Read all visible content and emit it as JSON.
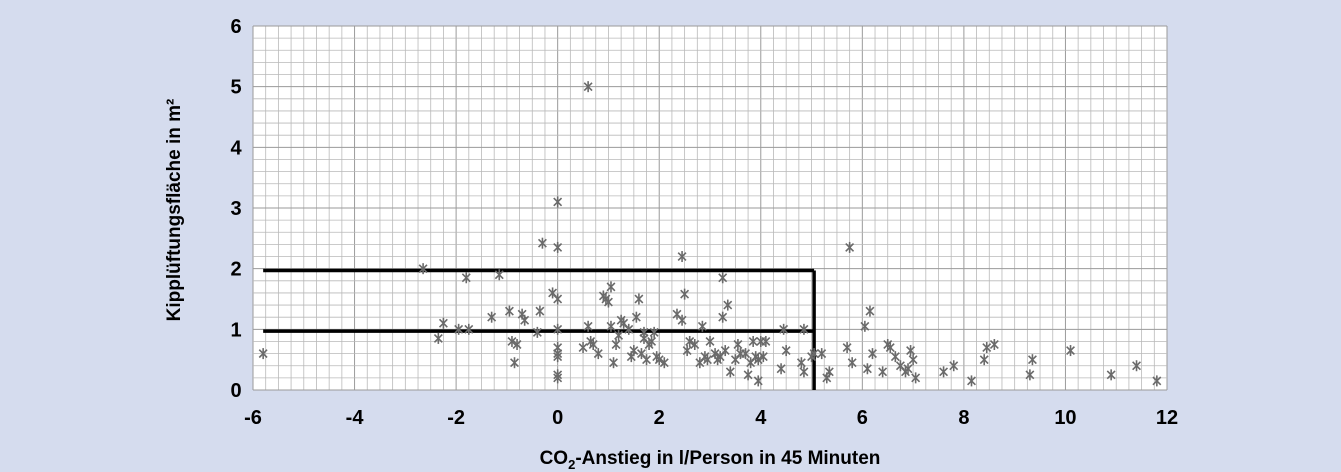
{
  "chart_data": {
    "type": "scatter",
    "xlabel": "CO",
    "xlabel_subscript": "2",
    "xlabel_rest": "-Anstieg in l/Person in 45 Minuten",
    "ylabel": "Kipplüftungsfläche in m²",
    "xlim": [
      -6,
      12
    ],
    "ylim": [
      0,
      6
    ],
    "x_ticks": [
      "-6",
      "-4",
      "-2",
      "0",
      "2",
      "4",
      "6",
      "8",
      "10",
      "12"
    ],
    "y_ticks": [
      "0",
      "1",
      "2",
      "3",
      "4",
      "5",
      "6"
    ],
    "grid": true,
    "marker": "asterisk",
    "marker_color": "#6a6a6a",
    "background_color": "#d5dcee",
    "plot_background_color": "#ffffff",
    "highlight_region": {
      "x_from": -5.8,
      "x_to": 5.05,
      "y_lines": [
        1.97,
        0.97
      ],
      "line_color": "#000000"
    },
    "points": [
      [
        -5.8,
        0.6
      ],
      [
        -2.65,
        2.0
      ],
      [
        -2.35,
        0.85
      ],
      [
        -2.25,
        1.1
      ],
      [
        -1.95,
        1.0
      ],
      [
        -1.8,
        1.85
      ],
      [
        -1.75,
        1.0
      ],
      [
        -1.3,
        1.2
      ],
      [
        -1.15,
        1.9
      ],
      [
        -0.95,
        1.3
      ],
      [
        -0.9,
        0.8
      ],
      [
        -0.85,
        0.45
      ],
      [
        -0.8,
        0.75
      ],
      [
        -0.7,
        1.25
      ],
      [
        -0.65,
        1.15
      ],
      [
        -0.4,
        0.95
      ],
      [
        -0.35,
        1.3
      ],
      [
        -0.3,
        2.42
      ],
      [
        -0.1,
        1.6
      ],
      [
        0.0,
        3.1
      ],
      [
        0.0,
        2.35
      ],
      [
        0.0,
        1.5
      ],
      [
        0.0,
        1.0
      ],
      [
        0.0,
        0.7
      ],
      [
        0.0,
        0.6
      ],
      [
        0.0,
        0.55
      ],
      [
        0.0,
        0.25
      ],
      [
        0.0,
        0.2
      ],
      [
        0.5,
        0.7
      ],
      [
        0.6,
        5.0
      ],
      [
        0.6,
        1.05
      ],
      [
        0.65,
        0.8
      ],
      [
        0.7,
        0.75
      ],
      [
        0.8,
        0.6
      ],
      [
        0.9,
        1.55
      ],
      [
        0.95,
        1.5
      ],
      [
        1.0,
        1.45
      ],
      [
        1.05,
        1.7
      ],
      [
        1.05,
        1.05
      ],
      [
        1.1,
        0.45
      ],
      [
        1.15,
        0.75
      ],
      [
        1.2,
        0.9
      ],
      [
        1.25,
        1.15
      ],
      [
        1.3,
        1.1
      ],
      [
        1.4,
        1.0
      ],
      [
        1.45,
        0.55
      ],
      [
        1.5,
        0.65
      ],
      [
        1.55,
        1.2
      ],
      [
        1.6,
        1.5
      ],
      [
        1.65,
        0.6
      ],
      [
        1.7,
        0.95
      ],
      [
        1.7,
        0.85
      ],
      [
        1.75,
        0.5
      ],
      [
        1.8,
        0.75
      ],
      [
        1.85,
        0.8
      ],
      [
        1.9,
        0.95
      ],
      [
        1.95,
        0.55
      ],
      [
        2.0,
        0.5
      ],
      [
        2.1,
        0.45
      ],
      [
        2.35,
        1.25
      ],
      [
        2.45,
        2.2
      ],
      [
        2.45,
        1.15
      ],
      [
        2.5,
        1.58
      ],
      [
        2.55,
        0.65
      ],
      [
        2.6,
        0.8
      ],
      [
        2.7,
        0.75
      ],
      [
        2.8,
        0.45
      ],
      [
        2.85,
        1.05
      ],
      [
        2.9,
        0.55
      ],
      [
        2.95,
        0.5
      ],
      [
        3.0,
        0.8
      ],
      [
        3.1,
        0.6
      ],
      [
        3.15,
        0.5
      ],
      [
        3.2,
        0.55
      ],
      [
        3.25,
        1.85
      ],
      [
        3.25,
        1.2
      ],
      [
        3.3,
        0.65
      ],
      [
        3.35,
        1.4
      ],
      [
        3.4,
        0.3
      ],
      [
        3.5,
        0.5
      ],
      [
        3.55,
        0.75
      ],
      [
        3.6,
        0.6
      ],
      [
        3.7,
        0.6
      ],
      [
        3.75,
        0.25
      ],
      [
        3.8,
        0.45
      ],
      [
        3.85,
        0.8
      ],
      [
        3.9,
        0.55
      ],
      [
        3.95,
        0.5
      ],
      [
        3.95,
        0.15
      ],
      [
        4.0,
        0.8
      ],
      [
        4.05,
        0.55
      ],
      [
        4.1,
        0.8
      ],
      [
        4.4,
        0.35
      ],
      [
        4.45,
        1.0
      ],
      [
        4.5,
        0.65
      ],
      [
        4.8,
        0.45
      ],
      [
        4.85,
        0.3
      ],
      [
        4.85,
        1.0
      ],
      [
        5.0,
        0.55
      ],
      [
        5.05,
        0.6
      ],
      [
        5.2,
        0.6
      ],
      [
        5.3,
        0.2
      ],
      [
        5.35,
        0.3
      ],
      [
        5.7,
        0.7
      ],
      [
        5.75,
        2.35
      ],
      [
        5.8,
        0.45
      ],
      [
        6.05,
        1.05
      ],
      [
        6.1,
        0.35
      ],
      [
        6.15,
        1.3
      ],
      [
        6.2,
        0.6
      ],
      [
        6.4,
        0.3
      ],
      [
        6.5,
        0.75
      ],
      [
        6.55,
        0.7
      ],
      [
        6.65,
        0.55
      ],
      [
        6.75,
        0.4
      ],
      [
        6.85,
        0.3
      ],
      [
        6.9,
        0.35
      ],
      [
        6.95,
        0.65
      ],
      [
        7.0,
        0.5
      ],
      [
        7.05,
        0.2
      ],
      [
        7.6,
        0.3
      ],
      [
        7.8,
        0.4
      ],
      [
        8.15,
        0.15
      ],
      [
        8.4,
        0.5
      ],
      [
        8.45,
        0.7
      ],
      [
        8.6,
        0.75
      ],
      [
        9.3,
        0.25
      ],
      [
        9.35,
        0.5
      ],
      [
        10.1,
        0.65
      ],
      [
        10.9,
        0.25
      ],
      [
        11.4,
        0.4
      ],
      [
        11.8,
        0.15
      ]
    ]
  }
}
